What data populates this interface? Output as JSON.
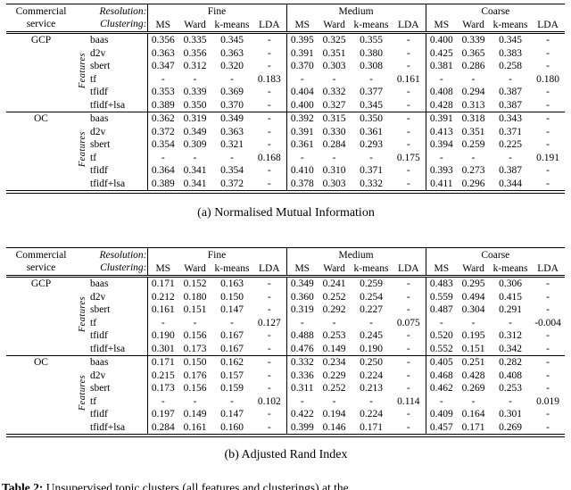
{
  "tables": [
    {
      "caption": "(a) Normalised Mutual Information",
      "header": {
        "col1_line1": "Commercial",
        "col1_line2": "service",
        "col2_line1": "Resolution:",
        "col2_line2": "Clustering:",
        "groups": [
          "Fine",
          "Medium",
          "Coarse"
        ],
        "methods": [
          "MS",
          "Ward",
          "k-means",
          "LDA"
        ]
      },
      "sections": [
        {
          "service": "GCP",
          "features_label": "Features",
          "rows": [
            {
              "feature": "baas",
              "values": [
                "0.356",
                "0.335",
                "0.345",
                "-",
                "0.395",
                "0.325",
                "0.355",
                "-",
                "0.400",
                "0.339",
                "0.345",
                "-"
              ],
              "bold": []
            },
            {
              "feature": "d2v",
              "values": [
                "0.363",
                "0.356",
                "0.363",
                "-",
                "0.391",
                "0.351",
                "0.380",
                "-",
                "0.425",
                "0.365",
                "0.383",
                "-"
              ],
              "bold": []
            },
            {
              "feature": "sbert",
              "values": [
                "0.347",
                "0.312",
                "0.320",
                "-",
                "0.370",
                "0.303",
                "0.308",
                "-",
                "0.381",
                "0.286",
                "0.258",
                "-"
              ],
              "bold": []
            },
            {
              "feature": "tf",
              "values": [
                "-",
                "-",
                "-",
                "0.183",
                "-",
                "-",
                "-",
                "0.161",
                "-",
                "-",
                "-",
                "0.180"
              ],
              "bold": []
            },
            {
              "feature": "tfidf",
              "values": [
                "0.353",
                "0.339",
                "0.369",
                "-",
                "0.404",
                "0.332",
                "0.377",
                "-",
                "0.408",
                "0.294",
                "0.387",
                "-"
              ],
              "bold": [
                4
              ]
            },
            {
              "feature": "tfidf+lsa",
              "values": [
                "0.389",
                "0.350",
                "0.370",
                "-",
                "0.400",
                "0.327",
                "0.345",
                "-",
                "0.428",
                "0.313",
                "0.387",
                "-"
              ],
              "bold": [
                0,
                8
              ]
            }
          ]
        },
        {
          "service": "OC",
          "features_label": "Features",
          "rows": [
            {
              "feature": "baas",
              "values": [
                "0.362",
                "0.319",
                "0.349",
                "-",
                "0.392",
                "0.315",
                "0.350",
                "-",
                "0.391",
                "0.318",
                "0.343",
                "-"
              ],
              "bold": []
            },
            {
              "feature": "d2v",
              "values": [
                "0.372",
                "0.349",
                "0.363",
                "-",
                "0.391",
                "0.330",
                "0.361",
                "-",
                "0.413",
                "0.351",
                "0.371",
                "-"
              ],
              "bold": [
                8
              ]
            },
            {
              "feature": "sbert",
              "values": [
                "0.354",
                "0.309",
                "0.321",
                "-",
                "0.361",
                "0.284",
                "0.293",
                "-",
                "0.394",
                "0.259",
                "0.225",
                "-"
              ],
              "bold": []
            },
            {
              "feature": "tf",
              "values": [
                "-",
                "-",
                "-",
                "0.168",
                "-",
                "-",
                "-",
                "0.175",
                "-",
                "-",
                "-",
                "0.191"
              ],
              "bold": []
            },
            {
              "feature": "tfidf",
              "values": [
                "0.364",
                "0.341",
                "0.354",
                "-",
                "0.410",
                "0.310",
                "0.371",
                "-",
                "0.393",
                "0.273",
                "0.387",
                "-"
              ],
              "bold": [
                4
              ]
            },
            {
              "feature": "tfidf+lsa",
              "values": [
                "0.389",
                "0.341",
                "0.372",
                "-",
                "0.378",
                "0.303",
                "0.332",
                "-",
                "0.411",
                "0.296",
                "0.344",
                "-"
              ],
              "bold": [
                0
              ]
            }
          ]
        }
      ]
    },
    {
      "caption": "(b) Adjusted Rand Index",
      "header": {
        "col1_line1": "Commercial",
        "col1_line2": "service",
        "col2_line1": "Resolution:",
        "col2_line2": "Clustering:",
        "groups": [
          "Fine",
          "Medium",
          "Coarse"
        ],
        "methods": [
          "MS",
          "Ward",
          "k-means",
          "LDA"
        ]
      },
      "sections": [
        {
          "service": "GCP",
          "features_label": "Features",
          "rows": [
            {
              "feature": "baas",
              "values": [
                "0.171",
                "0.152",
                "0.163",
                "-",
                "0.349",
                "0.241",
                "0.259",
                "-",
                "0.483",
                "0.295",
                "0.306",
                "-"
              ],
              "bold": []
            },
            {
              "feature": "d2v",
              "values": [
                "0.212",
                "0.180",
                "0.150",
                "-",
                "0.360",
                "0.252",
                "0.254",
                "-",
                "0.559",
                "0.494",
                "0.415",
                "-"
              ],
              "bold": [
                8
              ]
            },
            {
              "feature": "sbert",
              "values": [
                "0.161",
                "0.151",
                "0.147",
                "-",
                "0.319",
                "0.292",
                "0.227",
                "-",
                "0.487",
                "0.304",
                "0.291",
                "-"
              ],
              "bold": []
            },
            {
              "feature": "tf",
              "values": [
                "-",
                "-",
                "-",
                "0.127",
                "-",
                "-",
                "-",
                "0.075",
                "-",
                "-",
                "-",
                "-0.004"
              ],
              "bold": []
            },
            {
              "feature": "tfidf",
              "values": [
                "0.190",
                "0.156",
                "0.167",
                "-",
                "0.488",
                "0.253",
                "0.245",
                "-",
                "0.520",
                "0.195",
                "0.312",
                "-"
              ],
              "bold": [
                4
              ]
            },
            {
              "feature": "tfidf+lsa",
              "values": [
                "0.301",
                "0.173",
                "0.167",
                "-",
                "0.476",
                "0.149",
                "0.190",
                "-",
                "0.552",
                "0.151",
                "0.342",
                "-"
              ],
              "bold": [
                0
              ]
            }
          ]
        },
        {
          "service": "OC",
          "features_label": "Features",
          "rows": [
            {
              "feature": "baas",
              "values": [
                "0.171",
                "0.150",
                "0.162",
                "-",
                "0.332",
                "0.234",
                "0.250",
                "-",
                "0.405",
                "0.251",
                "0.282",
                "-"
              ],
              "bold": []
            },
            {
              "feature": "d2v",
              "values": [
                "0.215",
                "0.176",
                "0.157",
                "-",
                "0.336",
                "0.229",
                "0.224",
                "-",
                "0.468",
                "0.428",
                "0.408",
                "-"
              ],
              "bold": [
                8
              ]
            },
            {
              "feature": "sbert",
              "values": [
                "0.173",
                "0.156",
                "0.159",
                "-",
                "0.311",
                "0.252",
                "0.213",
                "-",
                "0.462",
                "0.269",
                "0.253",
                "-"
              ],
              "bold": []
            },
            {
              "feature": "tf",
              "values": [
                "-",
                "-",
                "-",
                "0.102",
                "-",
                "-",
                "-",
                "0.114",
                "-",
                "-",
                "-",
                "0.019"
              ],
              "bold": []
            },
            {
              "feature": "tfidf",
              "values": [
                "0.197",
                "0.149",
                "0.147",
                "-",
                "0.422",
                "0.194",
                "0.224",
                "-",
                "0.409",
                "0.164",
                "0.301",
                "-"
              ],
              "bold": [
                4
              ]
            },
            {
              "feature": "tfidf+lsa",
              "values": [
                "0.284",
                "0.161",
                "0.160",
                "-",
                "0.399",
                "0.146",
                "0.171",
                "-",
                "0.457",
                "0.171",
                "0.269",
                "-"
              ],
              "bold": [
                0
              ]
            }
          ]
        }
      ]
    }
  ],
  "footer": {
    "label": "Table 2:",
    "text": "Unsupervised topic clusters (all features and clusterings) at the"
  }
}
